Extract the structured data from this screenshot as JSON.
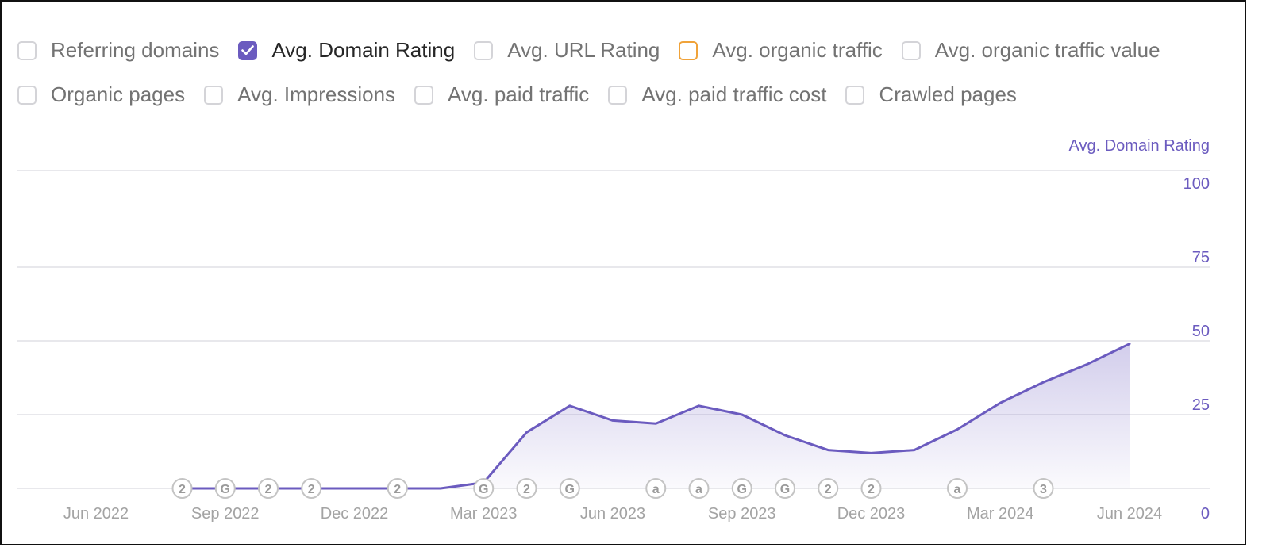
{
  "legend": [
    [
      {
        "label": "Referring domains",
        "checked": false
      },
      {
        "label": "Avg. Domain Rating",
        "checked": true
      },
      {
        "label": "Avg. URL Rating",
        "checked": false
      },
      {
        "label": "Avg. organic traffic",
        "checked": false
      },
      {
        "label": "Avg. organic traffic value",
        "checked": false
      }
    ],
    [
      {
        "label": "Organic pages",
        "checked": false
      },
      {
        "label": "Avg. Impressions",
        "checked": false
      },
      {
        "label": "Avg. paid traffic",
        "checked": false
      },
      {
        "label": "Avg. paid traffic cost",
        "checked": false
      },
      {
        "label": "Crawled pages",
        "checked": false
      }
    ]
  ],
  "colors": {
    "accent": "#6b5bbf",
    "fill": "#6b5bbf",
    "orange": "#f0a33a",
    "checkbox_border": "#d4d4d8",
    "grid": "#e8e8ec",
    "muted_text": "#a3a3a3",
    "marker": "#c4c4c4"
  },
  "chart_data": {
    "type": "area",
    "ylabel": "Avg. Domain Rating",
    "ylim": [
      0,
      100
    ],
    "yticks": [
      0,
      25,
      50,
      75,
      100
    ],
    "xticks": [
      "Jun 2022",
      "Sep 2022",
      "Dec 2022",
      "Mar 2023",
      "Jun 2023",
      "Sep 2023",
      "Dec 2023",
      "Mar 2024",
      "Jun 2024"
    ],
    "grid": true,
    "series": [
      {
        "x": [
          "2022-08-01",
          "2022-09-01",
          "2022-10-01",
          "2022-11-01",
          "2022-12-01",
          "2023-01-01",
          "2023-02-01",
          "2023-03-01",
          "2023-04-01",
          "2023-05-01",
          "2023-06-01",
          "2023-07-01",
          "2023-08-01",
          "2023-09-01",
          "2023-10-01",
          "2023-11-01",
          "2023-12-01",
          "2024-01-01",
          "2024-02-01",
          "2024-03-01",
          "2024-04-01",
          "2024-05-01",
          "2024-06-01"
        ],
        "values": [
          0,
          0,
          0,
          0,
          0,
          0,
          0,
          2,
          19,
          28,
          23,
          22,
          28,
          25,
          18,
          13,
          12,
          13,
          20,
          29,
          36,
          42,
          49
        ]
      }
    ],
    "annotations": [
      {
        "date": "2022-08-01",
        "label": "2"
      },
      {
        "date": "2022-09-01",
        "label": "G"
      },
      {
        "date": "2022-10-01",
        "label": "2"
      },
      {
        "date": "2022-11-01",
        "label": "2"
      },
      {
        "date": "2023-01-01",
        "label": "2"
      },
      {
        "date": "2023-03-01",
        "label": "G"
      },
      {
        "date": "2023-04-01",
        "label": "2"
      },
      {
        "date": "2023-05-01",
        "label": "G"
      },
      {
        "date": "2023-07-01",
        "label": "a"
      },
      {
        "date": "2023-08-01",
        "label": "a"
      },
      {
        "date": "2023-09-01",
        "label": "G"
      },
      {
        "date": "2023-10-01",
        "label": "G"
      },
      {
        "date": "2023-11-01",
        "label": "2"
      },
      {
        "date": "2023-12-01",
        "label": "2"
      },
      {
        "date": "2024-02-01",
        "label": "a"
      },
      {
        "date": "2024-04-01",
        "label": "3"
      }
    ]
  }
}
